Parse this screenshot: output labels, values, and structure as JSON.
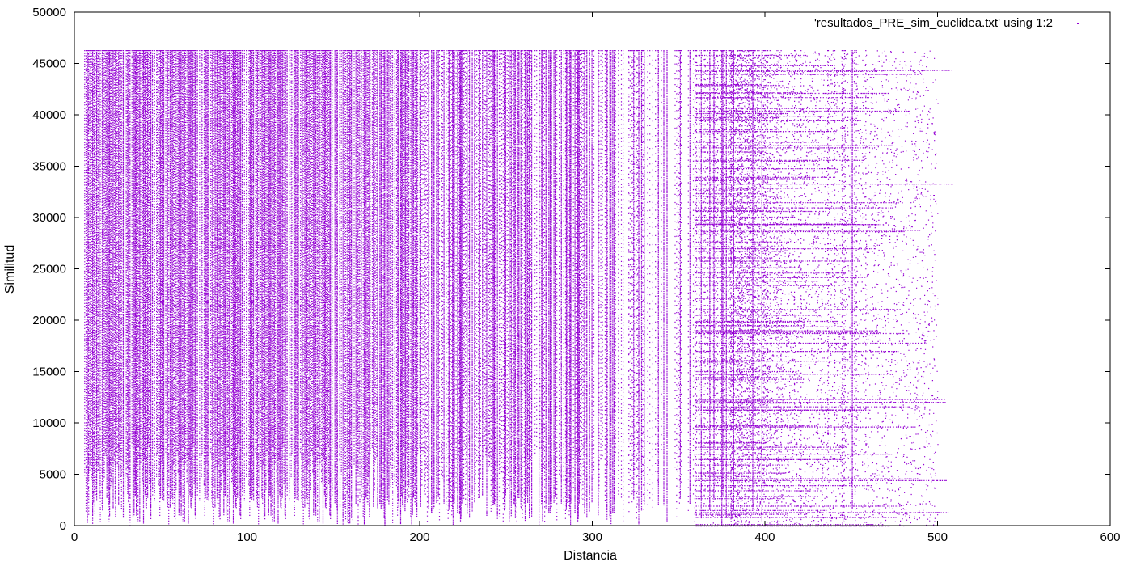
{
  "chart_data": {
    "type": "scatter",
    "title": "",
    "xlabel": "Distancia",
    "ylabel": "Similitud",
    "xlim": [
      0,
      600
    ],
    "ylim": [
      0,
      50000
    ],
    "x_ticks": [
      0,
      100,
      200,
      300,
      400,
      500,
      600
    ],
    "y_ticks": [
      0,
      5000,
      10000,
      15000,
      20000,
      25000,
      30000,
      35000,
      40000,
      45000,
      50000
    ],
    "grid": false,
    "legend_position": "top-right",
    "series": [
      {
        "name": "'resultados_PRE_sim_euclidea.txt' using 1:2",
        "color": "#9400d3",
        "marker": "dot",
        "description_ranges": {
          "x_range": [
            5,
            580
          ],
          "y_range": [
            0,
            46300
          ],
          "dense_x_range": [
            5,
            400
          ],
          "sparse_x_range": [
            400,
            580
          ]
        }
      }
    ]
  }
}
